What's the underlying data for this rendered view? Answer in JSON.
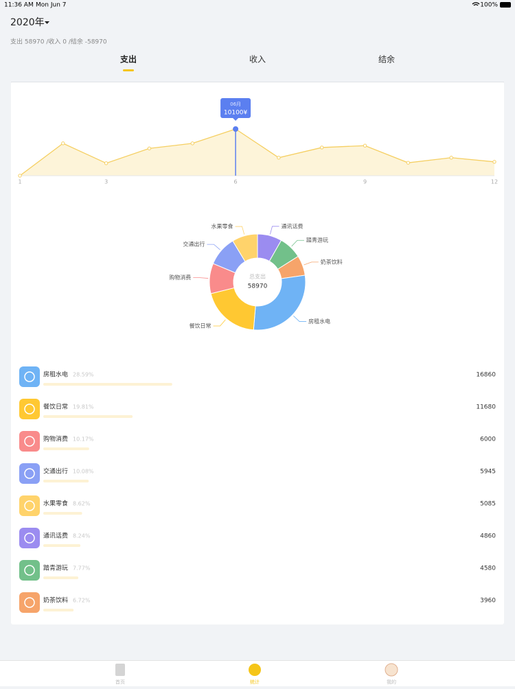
{
  "status_bar": {
    "time": "11:36 AM",
    "date": "Mon Jun 7",
    "battery": "100%"
  },
  "header": {
    "year": "2020年",
    "summary": "支出 58970 /收入 0 /结余 -58970"
  },
  "tabs": [
    "支出",
    "收入",
    "结余"
  ],
  "chart_data": [
    {
      "type": "line",
      "x": [
        1,
        2,
        3,
        4,
        5,
        6,
        7,
        8,
        9,
        10,
        11,
        12
      ],
      "values": [
        0,
        7000,
        2700,
        5900,
        7000,
        10100,
        3900,
        6100,
        6500,
        2800,
        3900,
        3000
      ],
      "xlim": [
        1,
        12
      ],
      "xticks": [
        1,
        3,
        6,
        9,
        12
      ],
      "ylim": [
        0,
        10100
      ],
      "color": "#f5cf62",
      "fill": "#fdf4d9",
      "tooltip": {
        "x": 6,
        "label": "06月",
        "value_label": "10100¥",
        "color": "#5b7ff0"
      }
    },
    {
      "type": "pie",
      "center_label": "总支出",
      "total": 58970,
      "categories": [
        "通讯话费",
        "踏青游玩",
        "奶茶饮料",
        "房租水电",
        "餐饮日常",
        "购物消费",
        "交通出行",
        "水果零食"
      ],
      "values": [
        4860,
        4580,
        3960,
        16860,
        11680,
        6000,
        5945,
        5085
      ],
      "colors": [
        "#9b8cf0",
        "#72c08a",
        "#f6a46a",
        "#6fb3f5",
        "#ffc832",
        "#f98b8b",
        "#8aa0f5",
        "#ffd36b"
      ]
    }
  ],
  "list": [
    {
      "name": "房租水电",
      "percent": 28.59,
      "percent_label": "28.59%",
      "amount": 16860,
      "color": "#6fb3f5"
    },
    {
      "name": "餐饮日常",
      "percent": 19.81,
      "percent_label": "19.81%",
      "amount": 11680,
      "color": "#ffc832"
    },
    {
      "name": "购物消费",
      "percent": 10.17,
      "percent_label": "10.17%",
      "amount": 6000,
      "color": "#f98b8b"
    },
    {
      "name": "交通出行",
      "percent": 10.08,
      "percent_label": "10.08%",
      "amount": 5945,
      "color": "#8aa0f5"
    },
    {
      "name": "水果零食",
      "percent": 8.62,
      "percent_label": "8.62%",
      "amount": 5085,
      "color": "#ffd36b"
    },
    {
      "name": "通讯话费",
      "percent": 8.24,
      "percent_label": "8.24%",
      "amount": 4860,
      "color": "#9b8cf0"
    },
    {
      "name": "踏青游玩",
      "percent": 7.77,
      "percent_label": "7.77%",
      "amount": 4580,
      "color": "#72c08a"
    },
    {
      "name": "奶茶饮料",
      "percent": 6.72,
      "percent_label": "6.72%",
      "amount": 3960,
      "color": "#f6a46a"
    }
  ],
  "tab_bar": [
    "首页",
    "统计",
    "我的"
  ]
}
